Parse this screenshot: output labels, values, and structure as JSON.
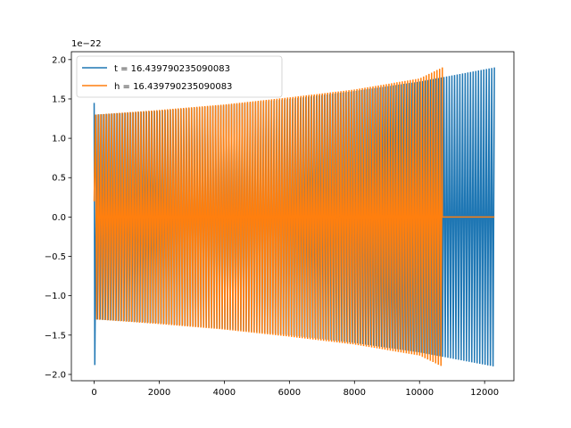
{
  "chart_data": {
    "type": "line",
    "title": "",
    "xlabel": "",
    "ylabel": "",
    "xlim": [
      -700,
      12900
    ],
    "ylim": [
      -2.08,
      2.1
    ],
    "y_scale_offset": "1e−22",
    "x_ticks": [
      0,
      2000,
      4000,
      6000,
      8000,
      10000,
      12000
    ],
    "x_tick_labels": [
      "0",
      "2000",
      "4000",
      "6000",
      "8000",
      "10000",
      "12000"
    ],
    "y_ticks": [
      -2.0,
      -1.5,
      -1.0,
      -0.5,
      0.0,
      0.5,
      1.0,
      1.5,
      2.0
    ],
    "y_tick_labels": [
      "−2.0",
      "−1.5",
      "−1.0",
      "−0.5",
      "0.0",
      "0.5",
      "1.0",
      "1.5",
      "2.0"
    ],
    "grid": false,
    "legend_position": "upper-left",
    "series": [
      {
        "name": "t = 16.439790235090083",
        "color": "#1f77b4",
        "description_points": {
          "initial_spike": [
            [
              0,
              1.45
            ],
            [
              20,
              -1.88
            ],
            [
              60,
              0.2
            ]
          ],
          "envelope_x": [
            0,
            2000,
            4000,
            6000,
            8000,
            10000,
            12300
          ],
          "envelope_amplitude": [
            1.3,
            1.35,
            1.42,
            1.5,
            1.6,
            1.72,
            1.9
          ],
          "end_x": 12300
        },
        "oscillation_cycles": 150
      },
      {
        "name": "h = 16.439790235090083",
        "color": "#ff7f0e",
        "description_points": {
          "start_x": 0,
          "start_value": 0.2,
          "envelope_x": [
            0,
            2000,
            4000,
            6000,
            8000,
            10000,
            10700
          ],
          "envelope_amplitude": [
            1.3,
            1.36,
            1.43,
            1.52,
            1.62,
            1.76,
            1.9
          ],
          "end_x": 10700,
          "tail_value": 0.0,
          "tail_end_x": 12300
        },
        "oscillation_cycles": 130
      }
    ]
  }
}
